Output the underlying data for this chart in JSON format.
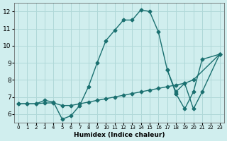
{
  "bg_color": "#d0eeee",
  "grid_color": "#b0d8d8",
  "line_color": "#1a7070",
  "xlabel": "Humidex (Indice chaleur)",
  "xlim": [
    -0.5,
    23.5
  ],
  "ylim": [
    5.5,
    12.5
  ],
  "xticks": [
    0,
    1,
    2,
    3,
    4,
    5,
    6,
    7,
    8,
    9,
    10,
    11,
    12,
    13,
    14,
    15,
    16,
    17,
    18,
    19,
    20,
    21,
    22,
    23
  ],
  "yticks": [
    6,
    7,
    8,
    9,
    10,
    11,
    12
  ],
  "line1_x": [
    0,
    1,
    2,
    3,
    4,
    5,
    6,
    7,
    8,
    9,
    10,
    11,
    12,
    13,
    14,
    15,
    16,
    17,
    18
  ],
  "line1_y": [
    6.6,
    6.6,
    6.6,
    6.8,
    6.7,
    5.7,
    5.9,
    6.5,
    7.6,
    9.0,
    10.3,
    10.9,
    11.5,
    11.5,
    12.1,
    12.0,
    10.8,
    8.6,
    7.2
  ],
  "line2a_x": [
    17,
    18,
    19,
    20,
    21,
    23
  ],
  "line2a_y": [
    8.6,
    7.3,
    7.8,
    6.3,
    7.3,
    9.5
  ],
  "line2b_x": [
    18,
    19,
    20,
    21,
    23
  ],
  "line2b_y": [
    7.2,
    6.3,
    7.3,
    9.2,
    9.5
  ],
  "line3_x": [
    0,
    1,
    2,
    3,
    4,
    5,
    6,
    7,
    8,
    9,
    10,
    11,
    12,
    13,
    14,
    15,
    16,
    17,
    18,
    19,
    20,
    23
  ],
  "line3_y": [
    6.6,
    6.6,
    6.6,
    6.65,
    6.65,
    6.5,
    6.5,
    6.6,
    6.7,
    6.8,
    6.9,
    7.0,
    7.1,
    7.2,
    7.3,
    7.4,
    7.5,
    7.6,
    7.7,
    7.8,
    8.0,
    9.5
  ]
}
